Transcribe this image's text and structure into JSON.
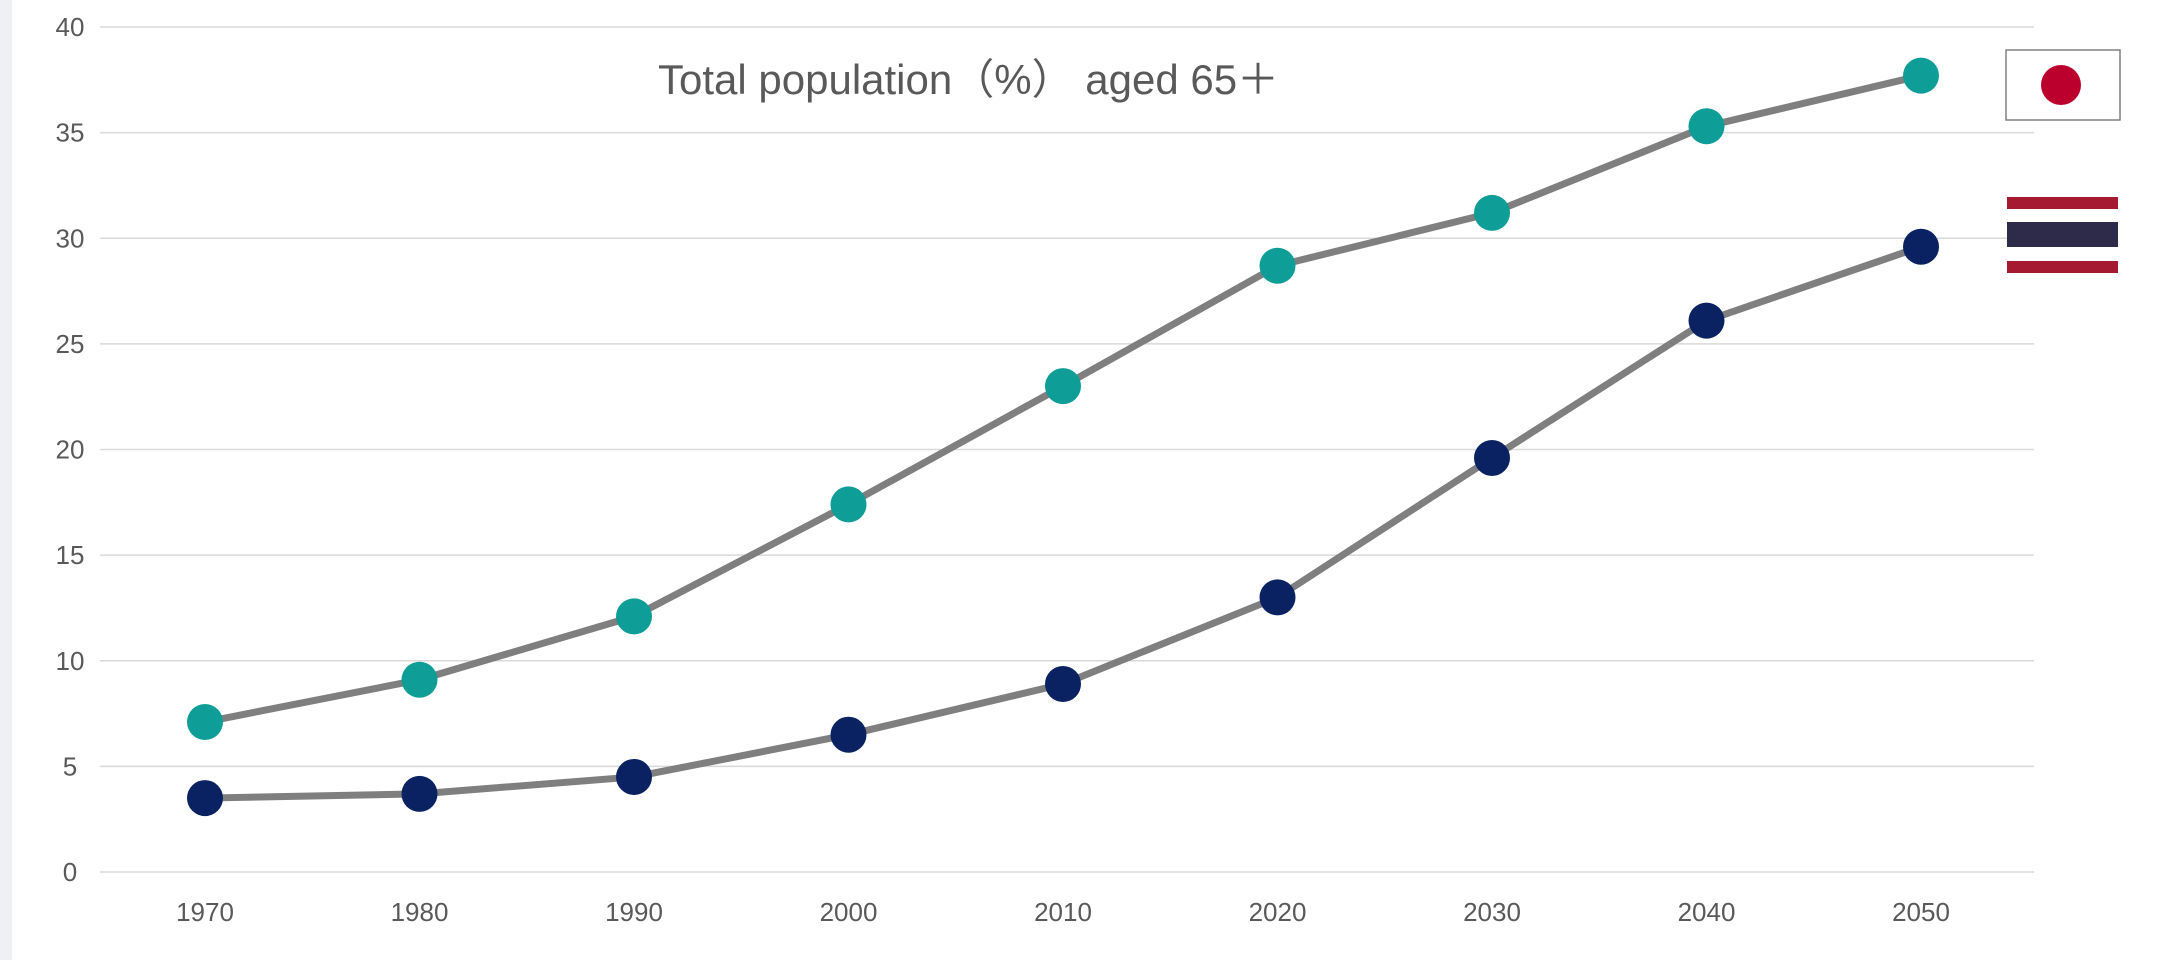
{
  "chart_data": {
    "type": "line",
    "title": "Total population（%） aged 65＋",
    "xlabel": "",
    "ylabel": "",
    "categories": [
      "1970",
      "1980",
      "1990",
      "2000",
      "2010",
      "2020",
      "2030",
      "2040",
      "2050"
    ],
    "ylim": [
      0,
      40
    ],
    "yticks": [
      0,
      5,
      10,
      15,
      20,
      25,
      30,
      35,
      40
    ],
    "grid": true,
    "legend": "right, flag icons",
    "series": [
      {
        "flag": "japan-flag-icon",
        "color": "#0f9e97",
        "line_color": "#7f7f7f",
        "values": [
          7.1,
          9.1,
          12.1,
          17.4,
          23.0,
          28.7,
          31.2,
          35.3,
          37.7
        ]
      },
      {
        "flag": "thailand-flag-icon",
        "color": "#0b2262",
        "line_color": "#7f7f7f",
        "values": [
          3.5,
          3.7,
          4.5,
          6.5,
          8.9,
          13.0,
          19.6,
          26.1,
          29.6
        ]
      }
    ]
  },
  "colors": {
    "background": "#ffffff",
    "gridline": "#d9d9d9",
    "text": "#595959",
    "japan_red": "#bc002d",
    "thai_red": "#a51931",
    "thai_blue": "#2d2a4a"
  }
}
